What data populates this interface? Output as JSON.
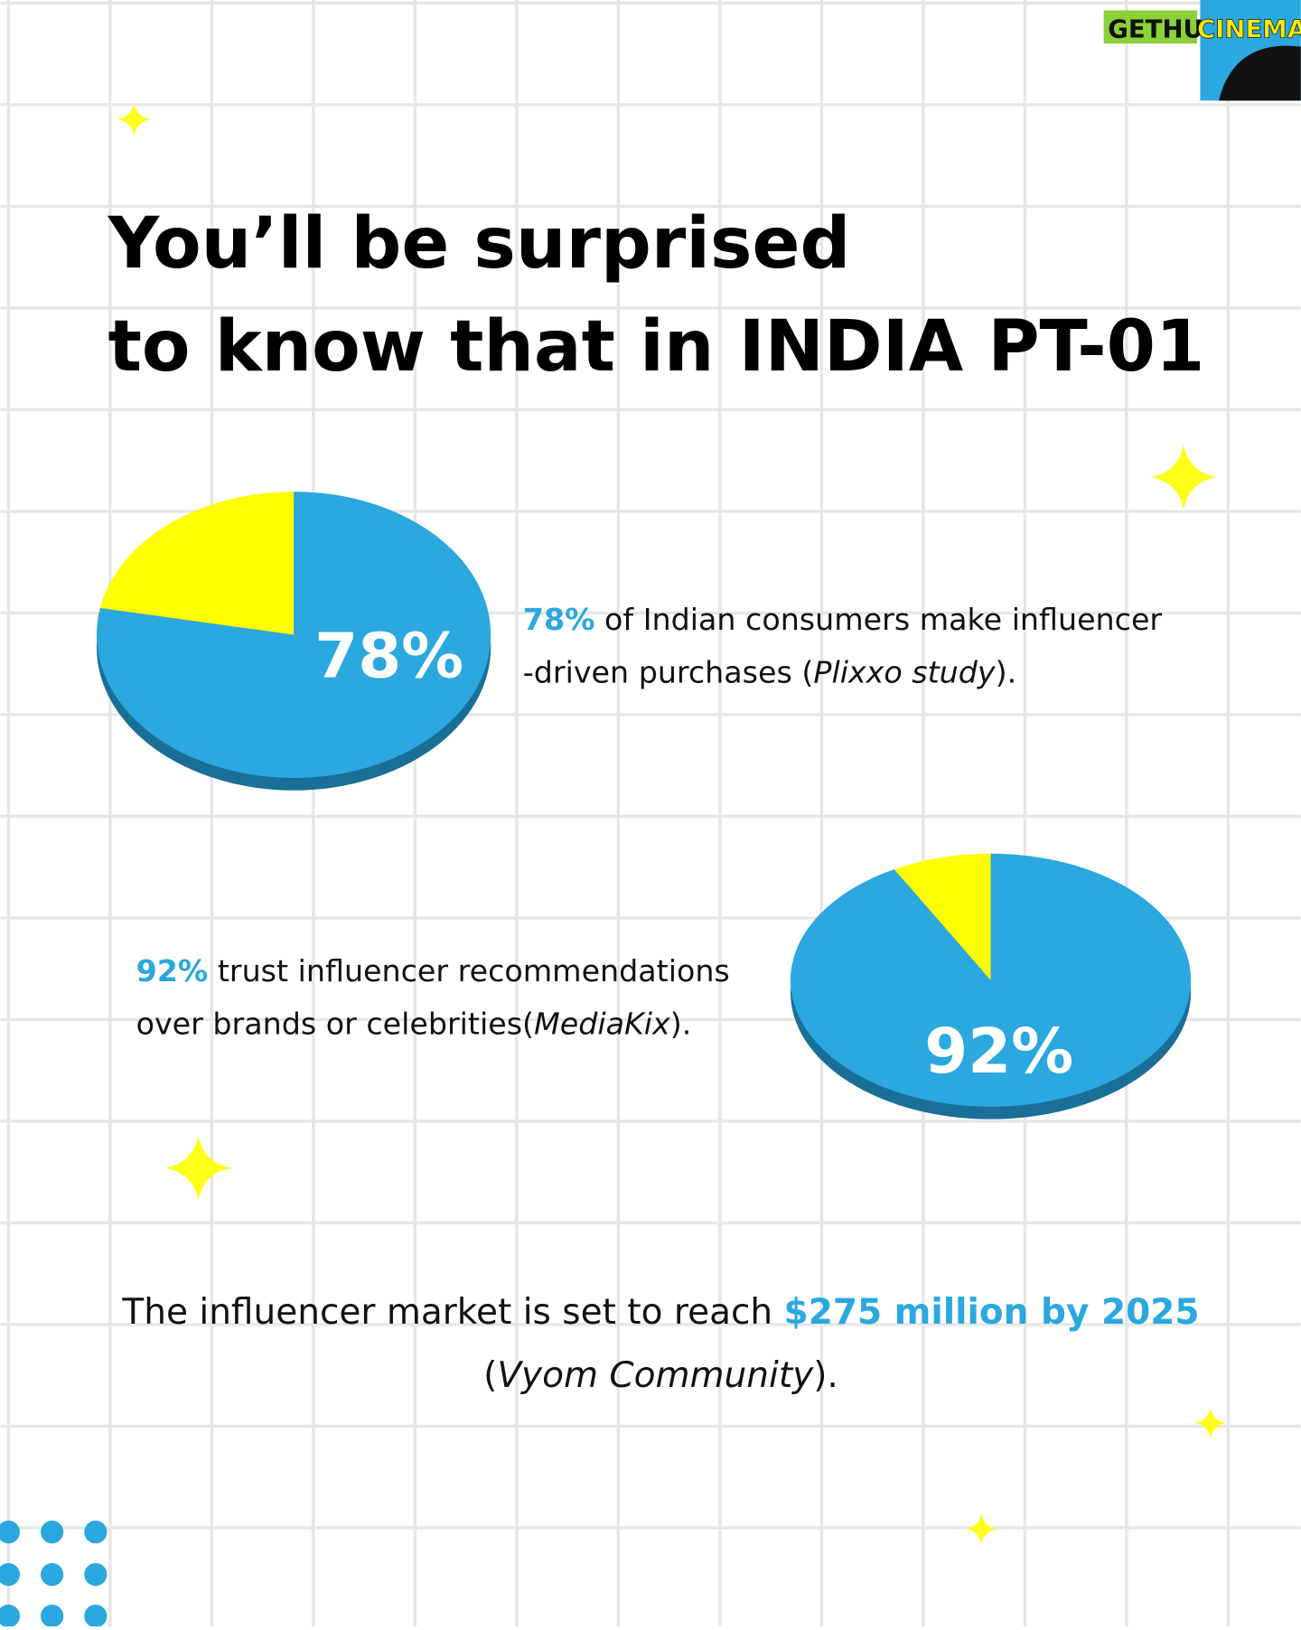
{
  "logo": {
    "left": "GETHU",
    "right": "CINEMA"
  },
  "title": [
    "You’ll be surprised",
    "to know that in INDIA PT-01"
  ],
  "chart_data": [
    {
      "type": "pie",
      "values": [
        78,
        22
      ],
      "value_labels": [
        "78%",
        null
      ],
      "colors": [
        "#2aa8df",
        "#ffff00"
      ],
      "caption": [
        [
          {
            "text": "78%",
            "style": "bold"
          },
          {
            "text": " of Indian consumers make influencer",
            "style": "normal"
          }
        ],
        [
          {
            "text": "-driven purchases (",
            "style": "normal"
          },
          {
            "text": "Plixxo study",
            "style": "italic"
          },
          {
            "text": ").",
            "style": "normal"
          }
        ]
      ]
    },
    {
      "type": "pie",
      "values": [
        92,
        8
      ],
      "value_labels": [
        "92%",
        null
      ],
      "colors": [
        "#2aa8df",
        "#ffff00"
      ],
      "caption": [
        [
          {
            "text": "92%",
            "style": "bold"
          },
          {
            "text": " trust influencer recommendations",
            "style": "normal"
          }
        ],
        [
          {
            "text": "over brands or celebrities(",
            "style": "normal"
          },
          {
            "text": "MediaKix",
            "style": "italic"
          },
          {
            "text": ").",
            "style": "normal"
          }
        ]
      ]
    }
  ],
  "footer": [
    [
      {
        "text": "The influencer market is set to reach ",
        "style": "normal"
      },
      {
        "text": "$275 million by 2025",
        "style": "bold"
      }
    ],
    [
      {
        "text": "(",
        "style": "normal"
      },
      {
        "text": "Vyom Community",
        "style": "italic"
      },
      {
        "text": ").",
        "style": "normal"
      }
    ]
  ]
}
